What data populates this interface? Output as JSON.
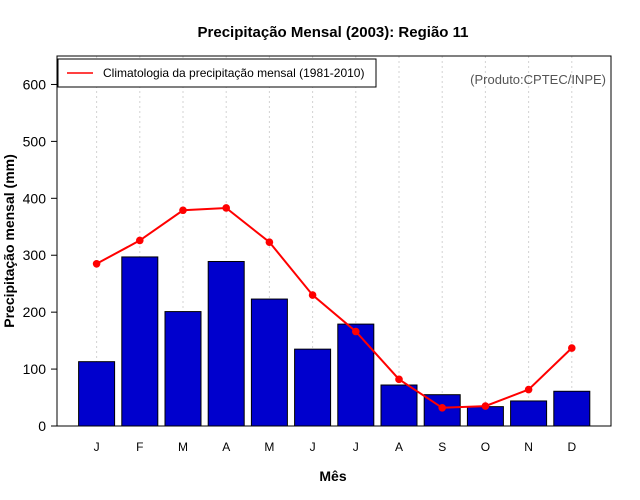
{
  "chart_data": {
    "type": "bar",
    "title": "Precipitação Mensal (2003): Região 11",
    "xlabel": "Mês",
    "ylabel": "Precipitação mensal (mm)",
    "ylim": [
      0,
      650
    ],
    "yticks": [
      0,
      100,
      200,
      300,
      400,
      500,
      600
    ],
    "grid": "vertical dotted",
    "categories": [
      "J",
      "F",
      "M",
      "A",
      "M",
      "J",
      "J",
      "A",
      "S",
      "O",
      "N",
      "D"
    ],
    "series": [
      {
        "name": "Precipitação mensal (2003)",
        "type": "bar",
        "color": "#0000CD",
        "values": [
          113,
          297,
          201,
          289,
          223,
          135,
          179,
          72,
          55,
          34,
          44,
          61
        ]
      },
      {
        "name": "Climatologia da precipitação mensal (1981-2010)",
        "type": "line",
        "color": "#FF0000",
        "values": [
          285,
          326,
          379,
          383,
          323,
          230,
          166,
          82,
          32,
          35,
          64,
          137
        ]
      }
    ],
    "legend": {
      "position": "top-left",
      "label": "Climatologia da precipitação mensal (1981-2010)"
    },
    "annotation": "(Produto:CPTEC/INPE)"
  }
}
